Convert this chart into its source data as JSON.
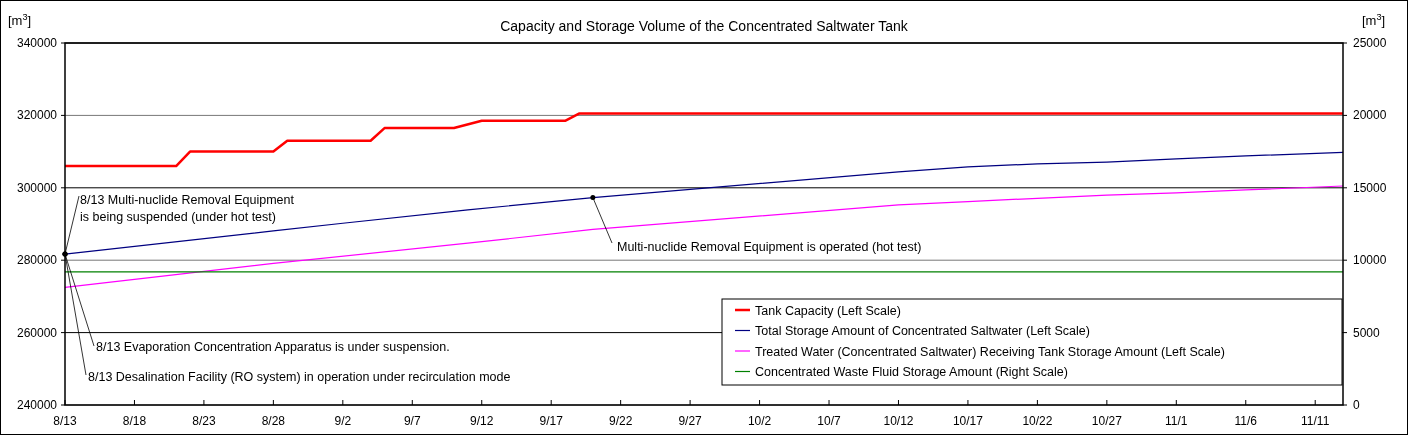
{
  "chart_data": {
    "type": "line",
    "title": "Capacity and Storage Volume of the Concentrated Saltwater Tank",
    "ylabel": "[m$^{3}$]",
    "y2label": "[m$^{3}$]",
    "xlim": [
      "--08-13",
      "--11-13"
    ],
    "xticks": [
      {
        "value": "--08-13",
        "label": "8/13"
      },
      {
        "value": "--08-18",
        "label": "8/18"
      },
      {
        "value": "--08-23",
        "label": "8/23"
      },
      {
        "value": "--08-28",
        "label": "8/28"
      },
      {
        "value": "--09-02",
        "label": "9/2"
      },
      {
        "value": "--09-07",
        "label": "9/7"
      },
      {
        "value": "--09-12",
        "label": "9/12"
      },
      {
        "value": "--09-17",
        "label": "9/17"
      },
      {
        "value": "--09-22",
        "label": "9/22"
      },
      {
        "value": "--09-27",
        "label": "9/27"
      },
      {
        "value": "--10-02",
        "label": "10/2"
      },
      {
        "value": "--10-07",
        "label": "10/7"
      },
      {
        "value": "--10-12",
        "label": "10/12"
      },
      {
        "value": "--10-17",
        "label": "10/17"
      },
      {
        "value": "--10-22",
        "label": "10/22"
      },
      {
        "value": "--10-27",
        "label": "10/27"
      },
      {
        "value": "--11-01",
        "label": "11/1"
      },
      {
        "value": "--11-06",
        "label": "11/6"
      },
      {
        "value": "--11-11",
        "label": "11/11"
      }
    ],
    "ylim": [
      240000,
      340000
    ],
    "yticks": [
      240000,
      260000,
      280000,
      300000,
      320000,
      340000
    ],
    "y2lim": [
      0,
      25000
    ],
    "y2ticks": [
      0,
      5000,
      10000,
      15000,
      20000,
      25000
    ],
    "grid": "y",
    "legend": "bottom right",
    "line_style": "solid",
    "series": [
      {
        "name": "Tank Capacity (Left Scale)",
        "color": "#ff0000",
        "x": [
          "--08-13",
          "--08-21",
          "--08-22",
          "--08-28",
          "--08-29",
          "--09-04",
          "--09-05",
          "--09-10",
          "--09-12",
          "--09-18",
          "--09-19",
          "--11-13"
        ],
        "values": [
          306000,
          306000,
          310000,
          310000,
          313000,
          313000,
          316500,
          316500,
          318500,
          318500,
          320500,
          320500
        ]
      },
      {
        "name": "Total Storage Amount of Concentrated Saltwater (Left Scale)",
        "color": "#000080",
        "x": [
          "--08-13",
          "--08-28",
          "--09-02",
          "--09-11",
          "--09-20",
          "--10-12",
          "--10-17",
          "--10-22",
          "--10-27",
          "--11-01",
          "--11-06",
          "--11-13"
        ],
        "values": [
          281700,
          288100,
          290200,
          293900,
          297300,
          304400,
          305800,
          306600,
          307100,
          308000,
          308800,
          309800
        ]
      },
      {
        "name": "Treated Water (Concentrated Saltwater) Receiving Tank Storage Amount (Left Scale)",
        "color": "#ff00ff",
        "x": [
          "--08-13",
          "--08-28",
          "--09-11",
          "--09-20",
          "--10-12",
          "--10-17",
          "--10-22",
          "--10-27",
          "--11-01",
          "--11-06",
          "--11-13"
        ],
        "values": [
          272500,
          279100,
          284700,
          288500,
          295300,
          296200,
          297100,
          298000,
          298600,
          299400,
          300500
        ]
      },
      {
        "name": "Concentrated Waste Fluid Storage Amount (Right Scale)",
        "color": "#008000",
        "axis": "y2",
        "x": [
          "--08-13",
          "--11-13"
        ],
        "values": [
          9200,
          9200
        ]
      }
    ],
    "annotations": [
      {
        "text": "8/13 Multi-nuclide Removal Equipment is being suspended (under hot test)",
        "x": "--08-13",
        "y": 281700
      },
      {
        "text": "Multi-nuclide Removal Equipment is operated (hot test)",
        "x": "--09-20",
        "y": 297300
      },
      {
        "text": "8/13 Evaporation Concentration Apparatus is under suspension.",
        "x": "--08-13",
        "y": 281700
      },
      {
        "text": "8/13 Desalination Facility (RO system) in operation under recirculation mode",
        "x": "--08-13",
        "y": 281700
      }
    ]
  }
}
